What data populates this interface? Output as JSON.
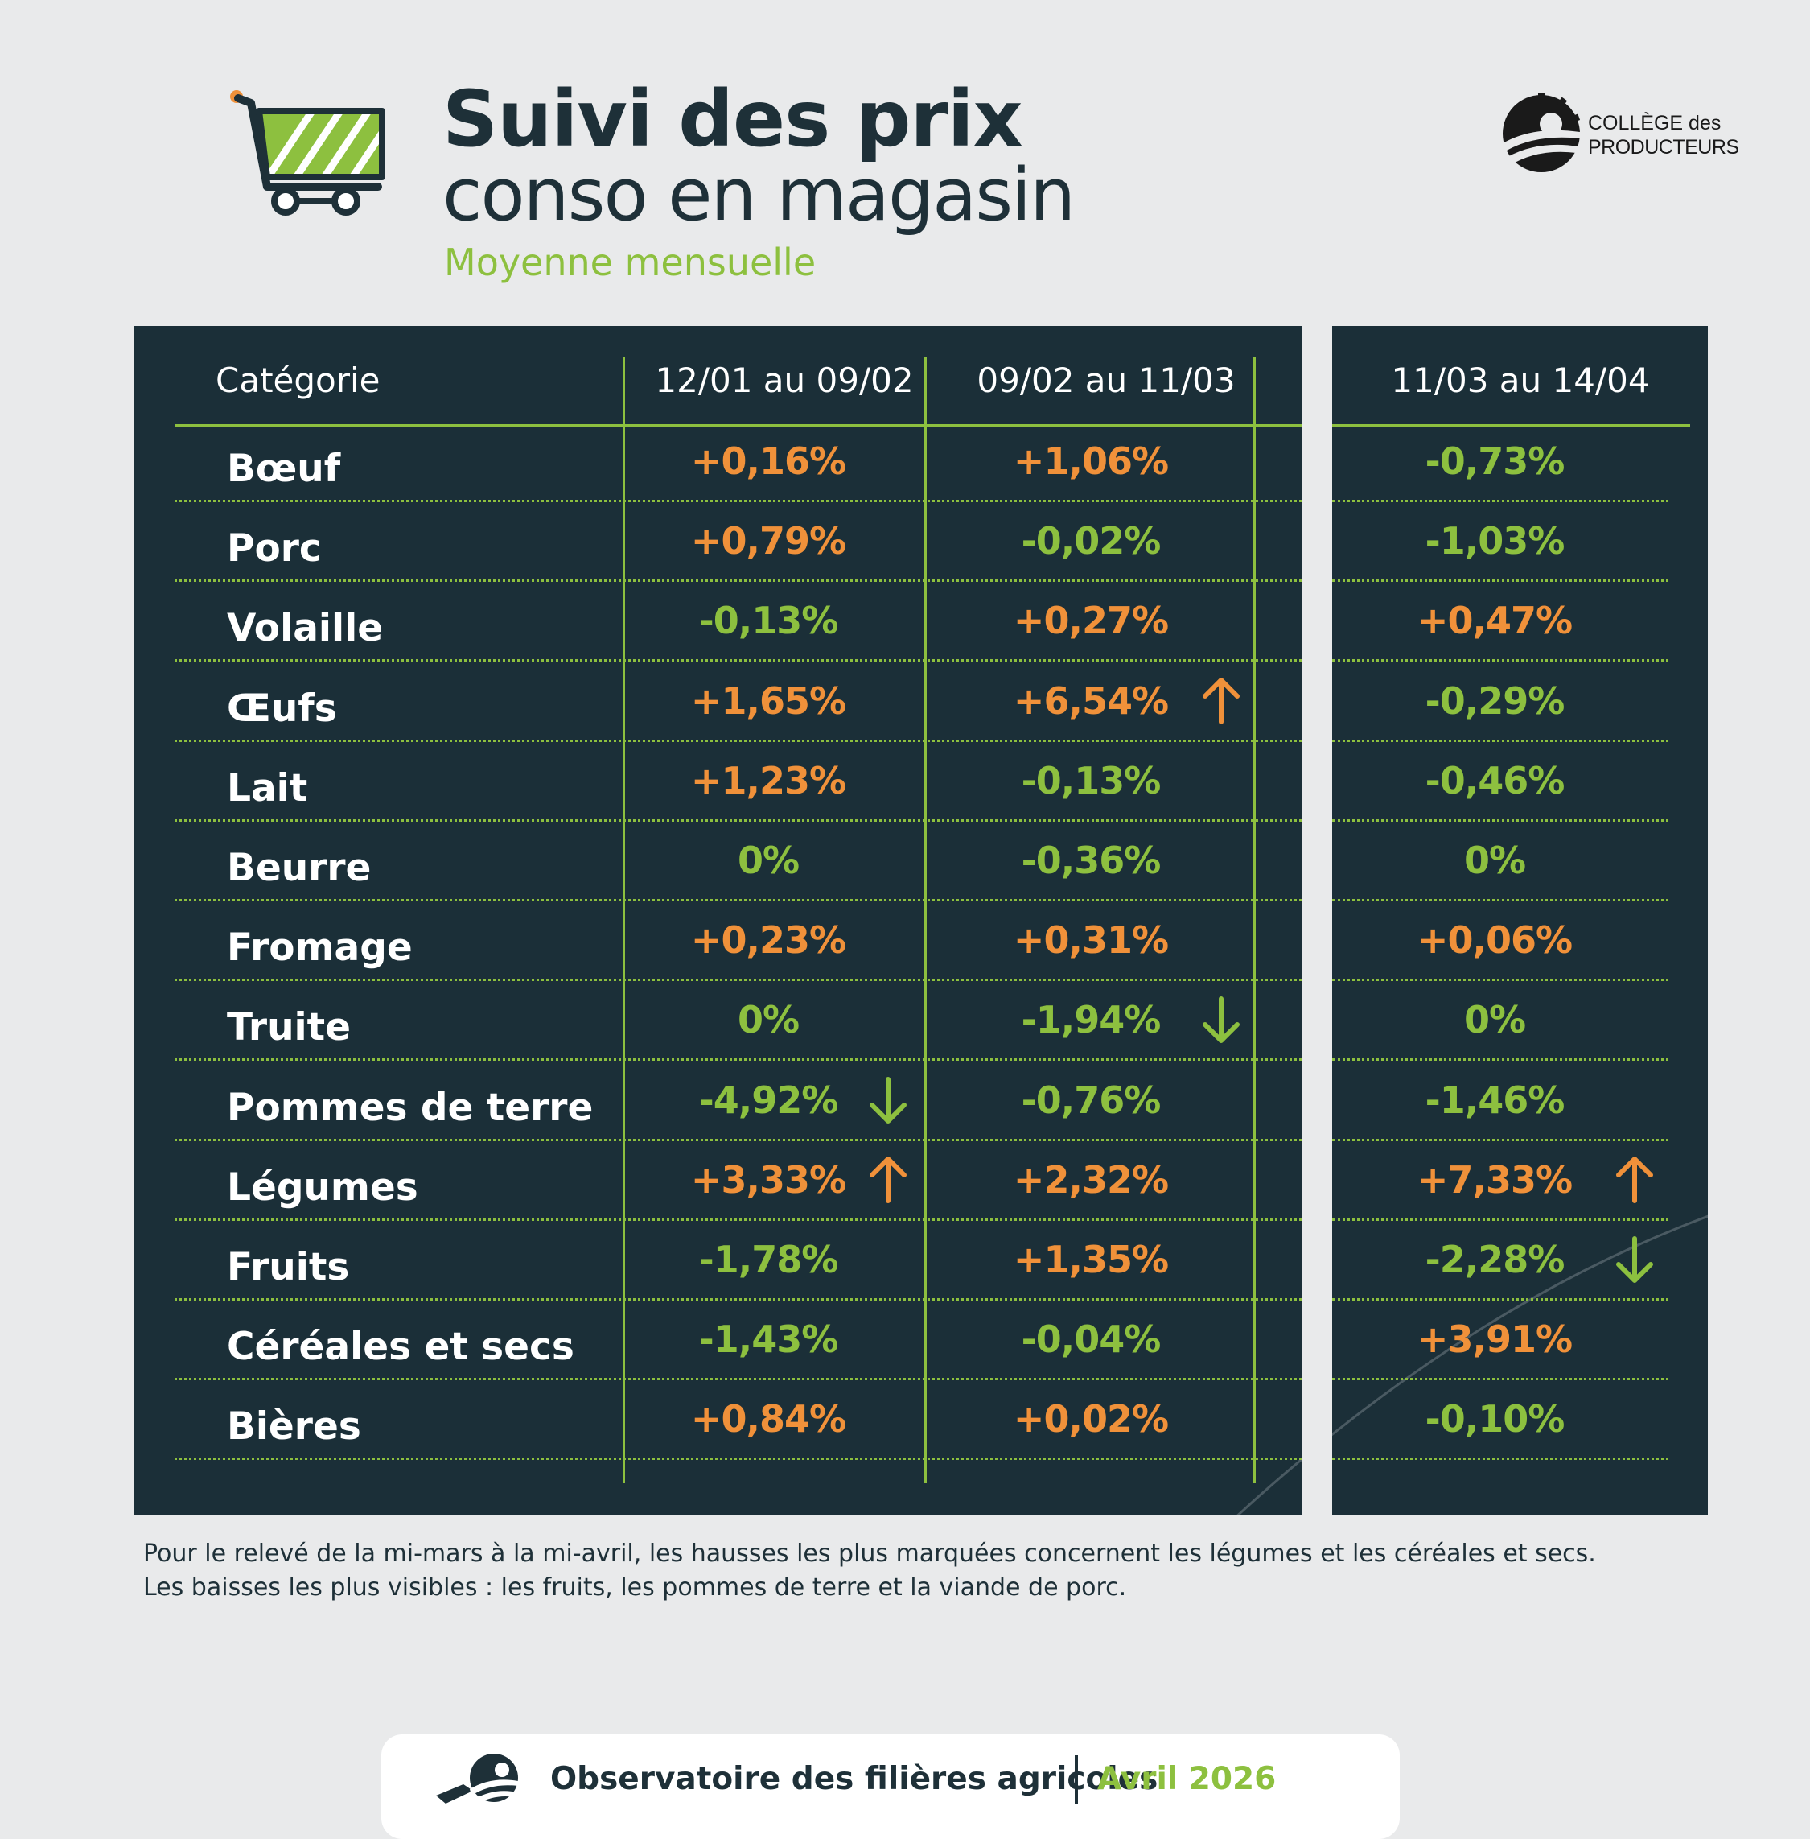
{
  "header": {
    "title_line1": "Suivi des prix",
    "title_line2": "conso en magasin",
    "subtitle": "Moyenne mensuelle"
  },
  "logo": {
    "line1": "COLLÈGE des",
    "line2": "PRODUCTEURS"
  },
  "table": {
    "columns": [
      "Catégorie",
      "12/01 au 09/02",
      "09/02 au 11/03",
      "11/03 au 14/04"
    ],
    "rows": [
      {
        "name": "Bœuf",
        "values": [
          "+0,16%",
          "+1,06%",
          "-0,73%"
        ],
        "arrows": [
          "",
          "",
          ""
        ]
      },
      {
        "name": "Porc",
        "values": [
          "+0,79%",
          "-0,02%",
          "-1,03%"
        ],
        "arrows": [
          "",
          "",
          ""
        ]
      },
      {
        "name": "Volaille",
        "values": [
          "-0,13%",
          "+0,27%",
          "+0,47%"
        ],
        "arrows": [
          "",
          "",
          ""
        ]
      },
      {
        "name": "Œufs",
        "values": [
          "+1,65%",
          "+6,54%",
          "-0,29%"
        ],
        "arrows": [
          "",
          "up",
          ""
        ]
      },
      {
        "name": "Lait",
        "values": [
          "+1,23%",
          "-0,13%",
          "-0,46%"
        ],
        "arrows": [
          "",
          "",
          ""
        ]
      },
      {
        "name": "Beurre",
        "values": [
          "0%",
          "-0,36%",
          "0%"
        ],
        "arrows": [
          "",
          "",
          ""
        ]
      },
      {
        "name": "Fromage",
        "values": [
          "+0,23%",
          "+0,31%",
          "+0,06%"
        ],
        "arrows": [
          "",
          "",
          ""
        ]
      },
      {
        "name": "Truite",
        "values": [
          "0%",
          "-1,94%",
          "0%"
        ],
        "arrows": [
          "",
          "down",
          ""
        ]
      },
      {
        "name": "Pommes de terre",
        "values": [
          "-4,92%",
          "-0,76%",
          "-1,46%"
        ],
        "arrows": [
          "down",
          "",
          ""
        ]
      },
      {
        "name": "Légumes",
        "values": [
          "+3,33%",
          "+2,32%",
          "+7,33%"
        ],
        "arrows": [
          "up",
          "",
          "up"
        ]
      },
      {
        "name": "Fruits",
        "values": [
          "-1,78%",
          "+1,35%",
          "-2,28%"
        ],
        "arrows": [
          "",
          "",
          "down"
        ]
      },
      {
        "name": "Céréales et secs",
        "values": [
          "-1,43%",
          "-0,04%",
          "+3,91%"
        ],
        "arrows": [
          "",
          "",
          ""
        ]
      },
      {
        "name": "Bières",
        "values": [
          "+0,84%",
          "+0,02%",
          "-0,10%"
        ],
        "arrows": [
          "",
          "",
          ""
        ]
      }
    ]
  },
  "note": {
    "line1": "Pour le relevé de la mi-mars à la mi-avril, les hausses les plus marquées concernent les légumes et les céréales et secs.",
    "line2": "Les baisses les plus visibles : les fruits, les pommes de terre et la viande de porc."
  },
  "footer": {
    "org": "Observatoire des filières agricoles",
    "date": "Avril 2026"
  },
  "colors": {
    "panel": "#1b2f38",
    "accent_green": "#8dc03f",
    "increase_orange": "#f0913a",
    "title_dark": "#1e3038",
    "background": "#e9eaeb"
  },
  "icons": [
    "shopping-cart-icon",
    "college-logo-icon",
    "arrow-up-icon",
    "arrow-down-icon",
    "observatoire-icon"
  ]
}
